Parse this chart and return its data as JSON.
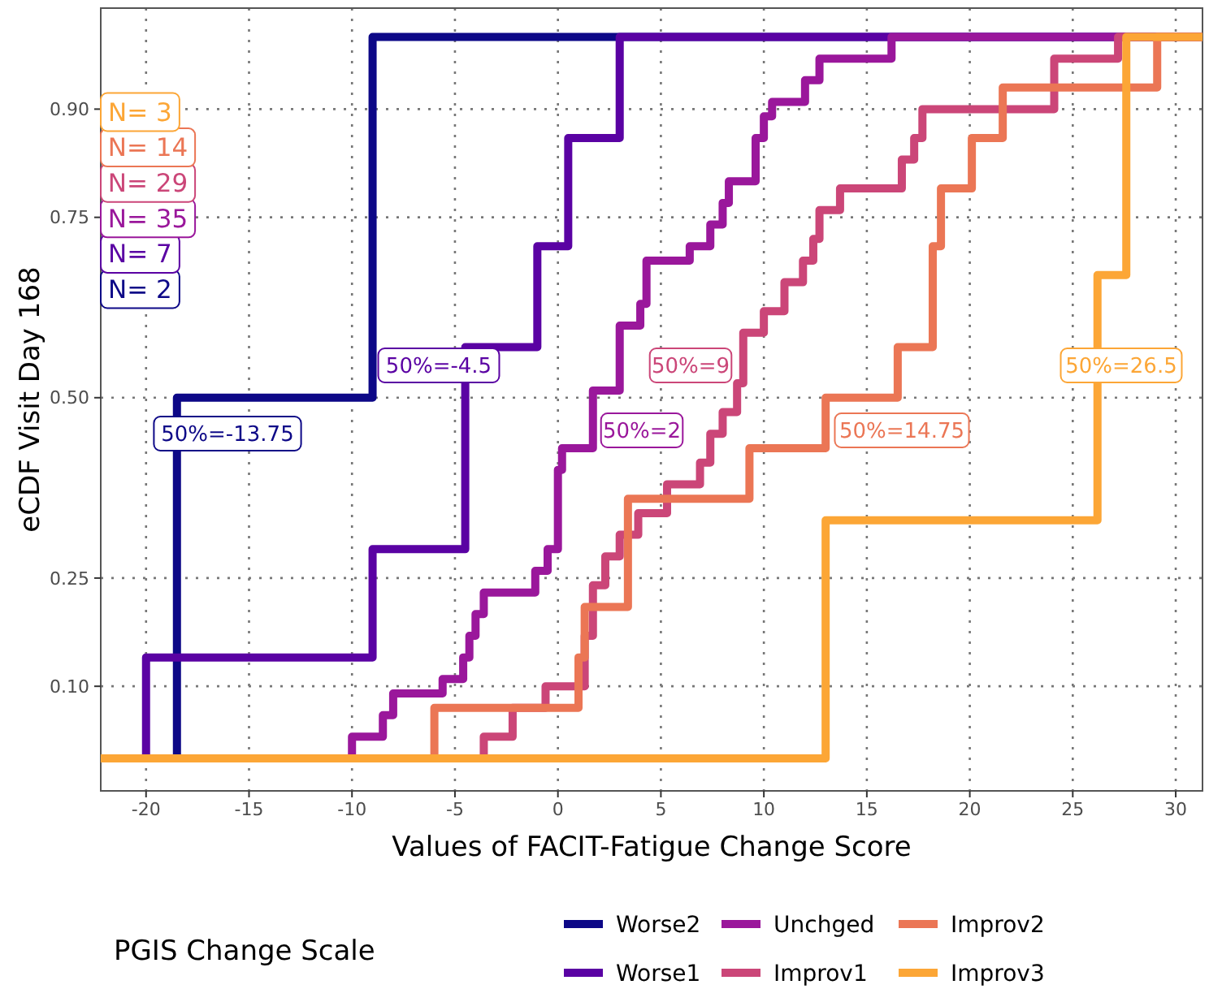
{
  "chart_data": {
    "type": "step",
    "xlabel": "Values of FACIT-Fatigue Change Score",
    "ylabel": "eCDF Visit Day 168",
    "legend_title": "PGIS Change Scale",
    "legend": "bottom",
    "grid": true,
    "line_style": "solid",
    "xlim": [
      -22.2,
      31.3
    ],
    "ylim": [
      -0.045,
      1.04
    ],
    "xticks": [
      -20,
      -15,
      -10,
      -5,
      0,
      5,
      10,
      15,
      20,
      25,
      30
    ],
    "yticks": [
      {
        "value": 0.1,
        "label": "0.10"
      },
      0.25,
      {
        "value": 0.5,
        "label": "0.50"
      },
      0.75,
      {
        "value": 0.9,
        "label": "0.90"
      }
    ],
    "series": [
      {
        "name": "Worse2",
        "color": "#0d0887",
        "x": [
          -22.2,
          -18.5,
          -9,
          31.3
        ],
        "values": [
          0,
          0.5,
          1,
          1
        ]
      },
      {
        "name": "Worse1",
        "color": "#5a02a3",
        "x": [
          -22.2,
          -20,
          -9,
          -4.5,
          -1,
          0.5,
          3,
          31.3
        ],
        "values": [
          0,
          0.14,
          0.29,
          0.57,
          0.71,
          0.86,
          1,
          1
        ]
      },
      {
        "name": "Unchged",
        "color": "#9a179b",
        "x": [
          -22.2,
          -10,
          -8.5,
          -8,
          -5.6,
          -4.6,
          -4.3,
          -4,
          -3.6,
          -1.1,
          -0.5,
          0,
          0.2,
          1.7,
          3,
          4,
          4.3,
          6.4,
          7.4,
          8,
          8.3,
          9.6,
          10,
          10.4,
          12,
          12.7,
          16.2,
          31.3
        ],
        "values": [
          0,
          0.03,
          0.06,
          0.09,
          0.11,
          0.14,
          0.17,
          0.2,
          0.23,
          0.26,
          0.29,
          0.4,
          0.43,
          0.51,
          0.6,
          0.63,
          0.69,
          0.71,
          0.74,
          0.77,
          0.8,
          0.86,
          0.89,
          0.91,
          0.94,
          0.97,
          1,
          1
        ]
      },
      {
        "name": "Improv1",
        "color": "#cb4678",
        "x": [
          -22.2,
          -3.6,
          -2.2,
          -0.6,
          1.3,
          1.7,
          2.3,
          3,
          3.9,
          5.3,
          6.9,
          7.4,
          8,
          8.7,
          9,
          10,
          11,
          11.9,
          12.4,
          12.7,
          13.7,
          16.7,
          17.3,
          17.7,
          24.1,
          27.2,
          31.3
        ],
        "values": [
          0,
          0.03,
          0.07,
          0.1,
          0.17,
          0.24,
          0.28,
          0.31,
          0.34,
          0.38,
          0.41,
          0.45,
          0.48,
          0.52,
          0.59,
          0.62,
          0.66,
          0.69,
          0.72,
          0.76,
          0.79,
          0.83,
          0.86,
          0.9,
          0.97,
          1,
          1
        ]
      },
      {
        "name": "Improv2",
        "color": "#eb7655",
        "x": [
          -22.2,
          -6,
          1,
          1.3,
          3.4,
          9.3,
          13,
          16.5,
          18.2,
          18.6,
          20.1,
          21.6,
          29.1,
          31.3
        ],
        "values": [
          0,
          0.07,
          0.14,
          0.21,
          0.36,
          0.43,
          0.5,
          0.57,
          0.71,
          0.79,
          0.86,
          0.93,
          1,
          1
        ]
      },
      {
        "name": "Improv3",
        "color": "#fca636",
        "x": [
          -22.2,
          13,
          26.2,
          27.6,
          31.3
        ],
        "values": [
          0,
          0.33,
          0.67,
          1,
          1
        ]
      }
    ],
    "annotations": [
      "50%=-13.75",
      "50%=-4.5",
      "50%=2",
      "50%=9",
      "50%=14.75",
      "50%=26.5",
      "N= 2",
      "N= 7",
      "N= 35",
      "N= 29",
      "N= 14",
      "N= 3"
    ]
  }
}
